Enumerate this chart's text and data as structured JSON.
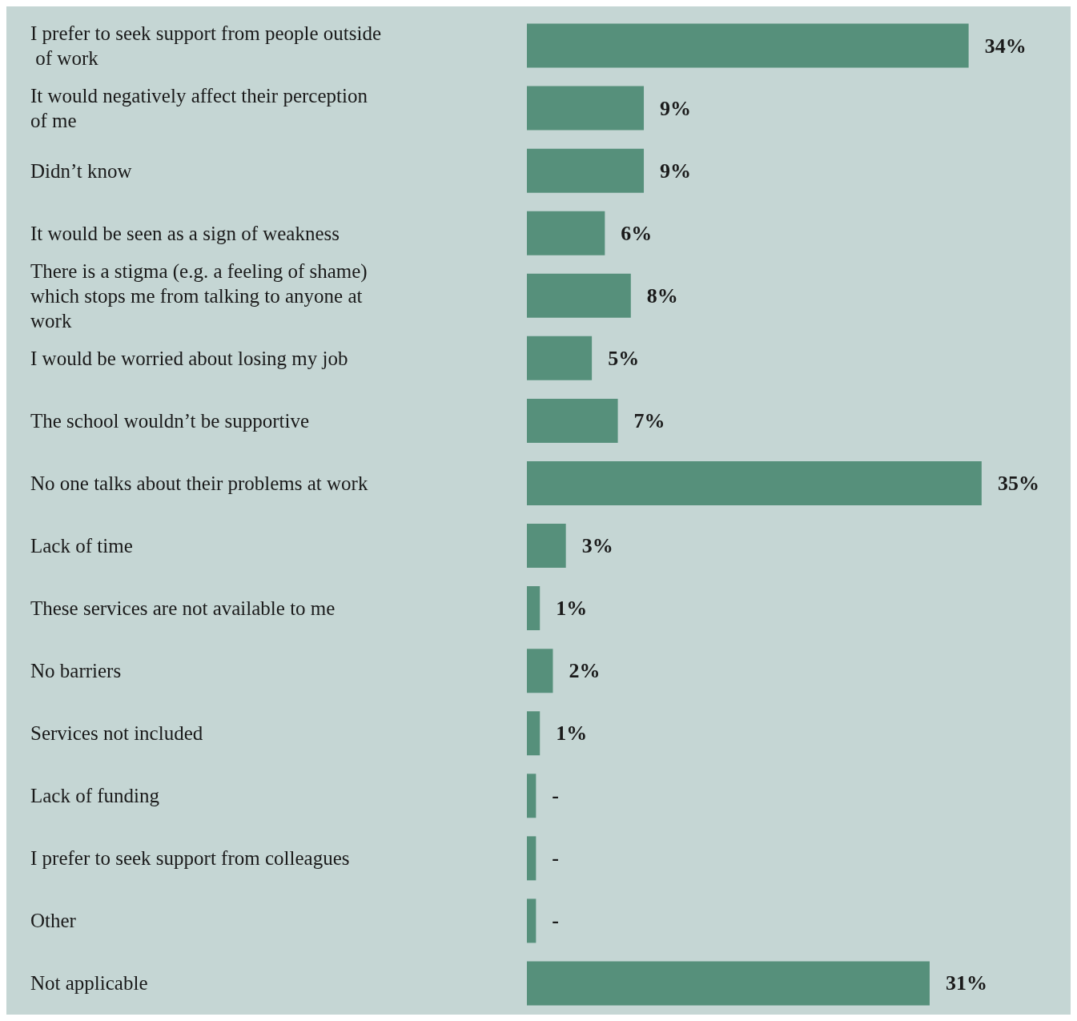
{
  "chart_data": {
    "type": "bar",
    "orientation": "horizontal",
    "color": "#56907b",
    "categories": [
      "I prefer to seek support from people outside of work",
      "It would negatively affect their perception of me",
      "Didn’t know",
      "It would be seen as a sign of weakness",
      "There is a stigma (e.g. a feeling of shame) which stops me from talking to anyone at work",
      "I would be worried about losing my job",
      "The school wouldn’t be supportive",
      "No one talks about their problems at work",
      "Lack of time",
      "These services are not available to me",
      "No barriers",
      "Services not included",
      "Lack of funding",
      "I prefer to seek support from colleagues",
      "Other",
      "Not applicable"
    ],
    "values": [
      34,
      9,
      9,
      6,
      8,
      5,
      7,
      35,
      3,
      1,
      2,
      1,
      0.7,
      0.7,
      0.7,
      31
    ],
    "value_labels": [
      "34%",
      "9%",
      "9%",
      "6%",
      "8%",
      "5%",
      "7%",
      "35%",
      "3%",
      "1%",
      "2%",
      "1%",
      "-",
      "-",
      "-",
      "31%"
    ]
  }
}
